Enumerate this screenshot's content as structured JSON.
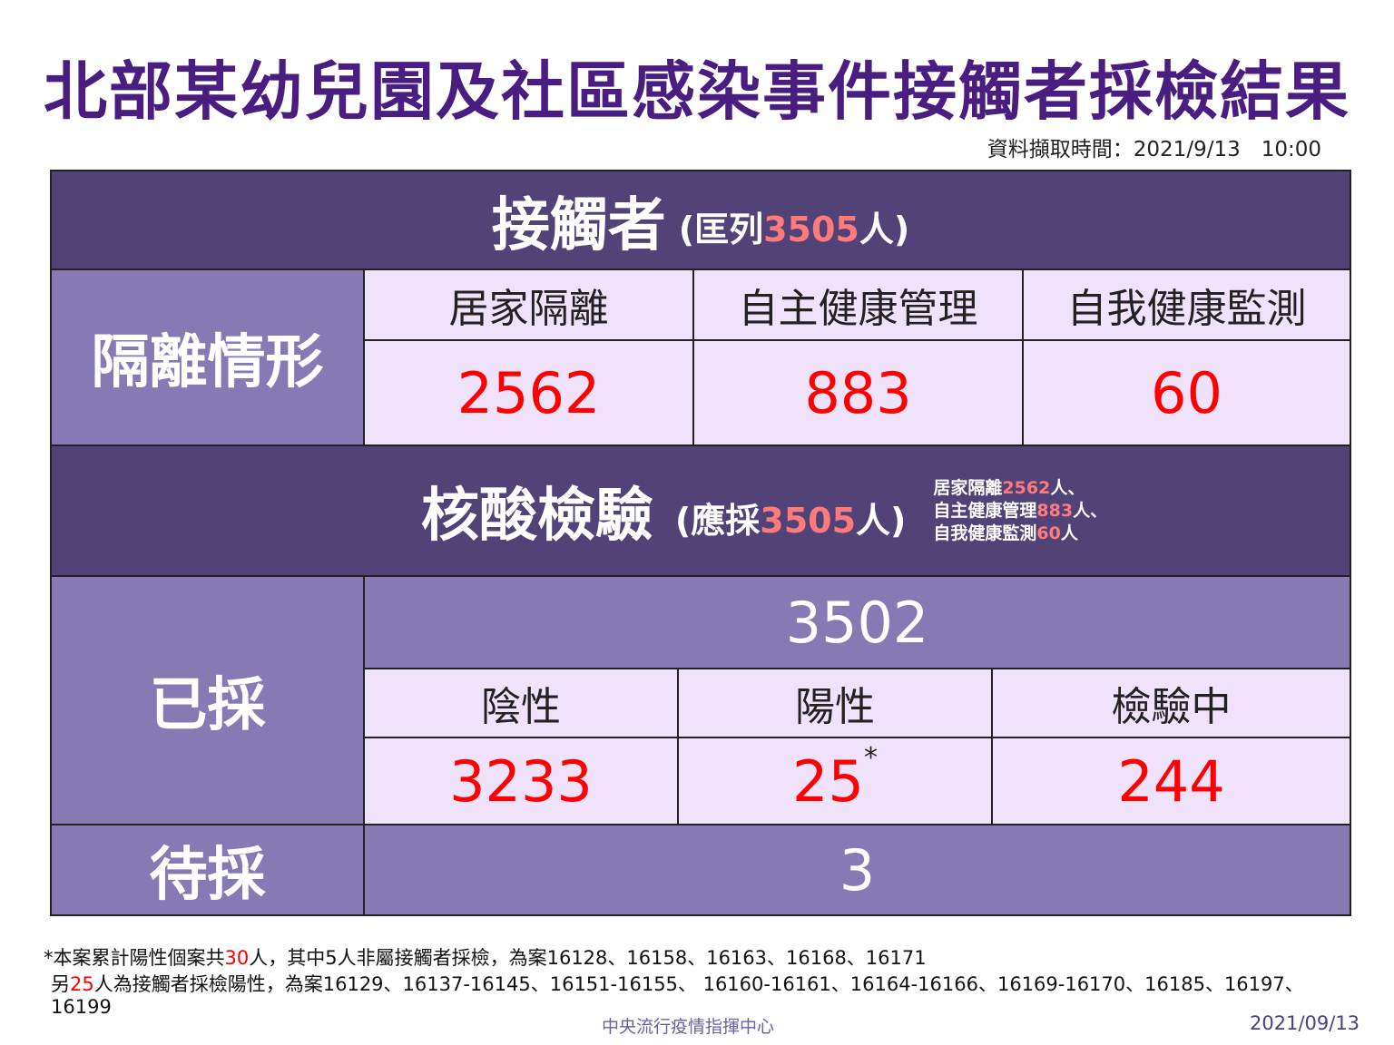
{
  "title": "北部某幼兒園及社區感染事件接觸者採檢結果",
  "timestamp": "資料擷取時間：2021/9/13　10:00",
  "contacts": {
    "heading": "接觸者",
    "paren_open": "(匡列",
    "count": "3505",
    "paren_close": "人)"
  },
  "quarantine": {
    "label": "隔離情形",
    "columns": [
      {
        "label": "居家隔離",
        "value": "2562"
      },
      {
        "label": "自主健康管理",
        "value": "883"
      },
      {
        "label": "自我健康監測",
        "value": "60"
      }
    ]
  },
  "pcr": {
    "heading": "核酸檢驗",
    "paren_open": "(應採",
    "count": "3505",
    "paren_close": "人)",
    "notes": [
      {
        "label": "居家隔離",
        "value": "2562",
        "suffix": "人、"
      },
      {
        "label": "自主健康管理",
        "value": "883",
        "suffix": "人、"
      },
      {
        "label": "自我健康監測",
        "value": "60",
        "suffix": "人"
      }
    ]
  },
  "sampled": {
    "label": "已採",
    "total": "3502",
    "columns": [
      {
        "label": "陰性",
        "value": "3233"
      },
      {
        "label": "陽性",
        "value": "25",
        "mark": "*"
      },
      {
        "label": "檢驗中",
        "value": "244"
      }
    ]
  },
  "pending": {
    "label": "待採",
    "value": "3"
  },
  "footnote": {
    "line1_a": "*本案累計陽性個案共",
    "line1_num": "30",
    "line1_b": "人，其中5人非屬接觸者採檢，為案16128、16158、16163、16168、16171",
    "line2_a": "另",
    "line2_num": "25",
    "line2_b": "人為接觸者採檢陽性，為案16129、16137-16145、16151-16155、 16160-16161、16164-16166、16169-16170、16185、16197、",
    "line3": "16199"
  },
  "source": "中央流行疫情指揮中心",
  "date": "2021/09/13",
  "colors": {
    "title": "#4a1e80",
    "dark": "#514377",
    "mid": "#8779b3",
    "light": "#efe2fa",
    "value": "#ff0000",
    "highlight": "#ff7b7b"
  }
}
